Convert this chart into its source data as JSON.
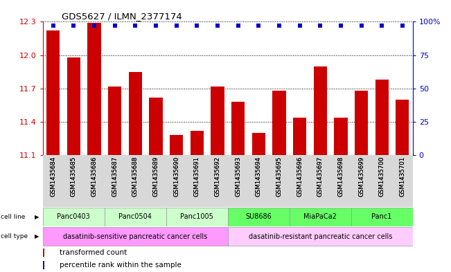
{
  "title": "GDS5627 / ILMN_2377174",
  "samples": [
    "GSM1435684",
    "GSM1435685",
    "GSM1435686",
    "GSM1435687",
    "GSM1435688",
    "GSM1435689",
    "GSM1435690",
    "GSM1435691",
    "GSM1435692",
    "GSM1435693",
    "GSM1435694",
    "GSM1435695",
    "GSM1435696",
    "GSM1435697",
    "GSM1435698",
    "GSM1435699",
    "GSM1435700",
    "GSM1435701"
  ],
  "transformed_counts": [
    12.22,
    11.98,
    12.29,
    11.72,
    11.85,
    11.62,
    11.28,
    11.32,
    11.72,
    11.58,
    11.3,
    11.68,
    11.44,
    11.9,
    11.44,
    11.68,
    11.78,
    11.6
  ],
  "percentile_ranks": [
    97,
    97,
    97,
    97,
    97,
    97,
    97,
    97,
    97,
    97,
    97,
    97,
    97,
    97,
    97,
    97,
    97,
    97
  ],
  "ylim_left": [
    11.1,
    12.3
  ],
  "ylim_right": [
    0,
    100
  ],
  "yticks_left": [
    11.1,
    11.4,
    11.7,
    12.0,
    12.3
  ],
  "yticks_right": [
    0,
    25,
    50,
    75,
    100
  ],
  "ytick_labels_right": [
    "0",
    "25",
    "50",
    "75",
    "100%"
  ],
  "bar_color": "#cc0000",
  "dot_color": "#0000cc",
  "cell_lines": [
    {
      "name": "Panc0403",
      "start": 0,
      "end": 3,
      "color": "#ccffcc"
    },
    {
      "name": "Panc0504",
      "start": 3,
      "end": 6,
      "color": "#ccffcc"
    },
    {
      "name": "Panc1005",
      "start": 6,
      "end": 9,
      "color": "#ccffcc"
    },
    {
      "name": "SU8686",
      "start": 9,
      "end": 12,
      "color": "#66ff66"
    },
    {
      "name": "MiaPaCa2",
      "start": 12,
      "end": 15,
      "color": "#66ff66"
    },
    {
      "name": "Panc1",
      "start": 15,
      "end": 18,
      "color": "#66ff66"
    }
  ],
  "cell_types": [
    {
      "name": "dasatinib-sensitive pancreatic cancer cells",
      "start": 0,
      "end": 9,
      "color": "#ff99ff"
    },
    {
      "name": "dasatinib-resistant pancreatic cancer cells",
      "start": 9,
      "end": 18,
      "color": "#ffccff"
    }
  ],
  "legend_bar_label": "transformed count",
  "legend_dot_label": "percentile rank within the sample",
  "xlabel_color": "#cc0000",
  "right_axis_color": "#0000cc",
  "bg_color": "#ffffff",
  "cell_line_label_color": "#aaaaaa",
  "gray_bg": "#d8d8d8"
}
